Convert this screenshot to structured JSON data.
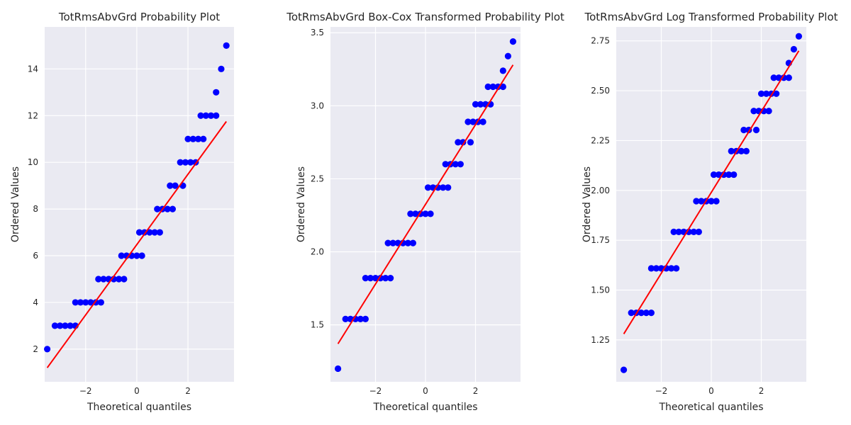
{
  "chart_data": [
    {
      "type": "scatter",
      "title": "TotRmsAbvGrd Probability Plot",
      "xlabel": "Theoretical quantiles",
      "ylabel": "Ordered Values",
      "xlim": [
        -3.6,
        3.8
      ],
      "ylim": [
        0.6,
        15.8
      ],
      "xticks": [
        -2,
        0,
        2
      ],
      "xtick_labels": [
        "−2",
        "0",
        "2"
      ],
      "yticks": [
        2,
        4,
        6,
        8,
        10,
        12,
        14
      ],
      "ytick_labels": [
        "2",
        "4",
        "6",
        "8",
        "10",
        "12",
        "14"
      ],
      "grid": true,
      "points": [
        {
          "x": -3.5,
          "y": 2
        },
        {
          "x": -3.2,
          "y": 3
        },
        {
          "x": -3.0,
          "y": 3
        },
        {
          "x": -2.8,
          "y": 3
        },
        {
          "x": -2.6,
          "y": 3
        },
        {
          "x": -2.4,
          "y": 3
        },
        {
          "x": -2.4,
          "y": 4
        },
        {
          "x": -2.2,
          "y": 4
        },
        {
          "x": -2.0,
          "y": 4
        },
        {
          "x": -1.8,
          "y": 4
        },
        {
          "x": -1.6,
          "y": 4
        },
        {
          "x": -1.4,
          "y": 4
        },
        {
          "x": -1.5,
          "y": 5
        },
        {
          "x": -1.3,
          "y": 5
        },
        {
          "x": -1.1,
          "y": 5
        },
        {
          "x": -0.9,
          "y": 5
        },
        {
          "x": -0.7,
          "y": 5
        },
        {
          "x": -0.5,
          "y": 5
        },
        {
          "x": -0.6,
          "y": 6
        },
        {
          "x": -0.4,
          "y": 6
        },
        {
          "x": -0.2,
          "y": 6
        },
        {
          "x": 0.0,
          "y": 6
        },
        {
          "x": 0.2,
          "y": 6
        },
        {
          "x": 0.1,
          "y": 7
        },
        {
          "x": 0.3,
          "y": 7
        },
        {
          "x": 0.5,
          "y": 7
        },
        {
          "x": 0.7,
          "y": 7
        },
        {
          "x": 0.9,
          "y": 7
        },
        {
          "x": 0.8,
          "y": 8
        },
        {
          "x": 1.0,
          "y": 8
        },
        {
          "x": 1.2,
          "y": 8
        },
        {
          "x": 1.4,
          "y": 8
        },
        {
          "x": 1.3,
          "y": 9
        },
        {
          "x": 1.5,
          "y": 9
        },
        {
          "x": 1.8,
          "y": 9
        },
        {
          "x": 1.7,
          "y": 10
        },
        {
          "x": 1.9,
          "y": 10
        },
        {
          "x": 2.1,
          "y": 10
        },
        {
          "x": 2.3,
          "y": 10
        },
        {
          "x": 2.0,
          "y": 11
        },
        {
          "x": 2.2,
          "y": 11
        },
        {
          "x": 2.4,
          "y": 11
        },
        {
          "x": 2.6,
          "y": 11
        },
        {
          "x": 2.5,
          "y": 12
        },
        {
          "x": 2.7,
          "y": 12
        },
        {
          "x": 2.9,
          "y": 12
        },
        {
          "x": 3.1,
          "y": 12
        },
        {
          "x": 3.1,
          "y": 13
        },
        {
          "x": 3.3,
          "y": 14
        },
        {
          "x": 3.5,
          "y": 15
        }
      ],
      "fit_line": {
        "x": [
          -3.5,
          3.5
        ],
        "y": [
          1.2,
          11.75
        ]
      },
      "colors": {
        "points": "#0000ff",
        "line": "#ff0000",
        "background": "#eaeaf2",
        "grid": "#ffffff"
      }
    },
    {
      "type": "scatter",
      "title": "TotRmsAbvGrd Box-Cox Transformed Probability Plot",
      "xlabel": "Theoretical quantiles",
      "ylabel": "Ordered Values",
      "xlim": [
        -3.8,
        3.8
      ],
      "ylim": [
        1.11,
        3.54
      ],
      "xticks": [
        -2,
        0,
        2
      ],
      "xtick_labels": [
        "−2",
        "0",
        "2"
      ],
      "yticks": [
        1.5,
        2.0,
        2.5,
        3.0,
        3.5
      ],
      "ytick_labels": [
        "1.5",
        "2.0",
        "2.5",
        "3.0",
        "3.5"
      ],
      "grid": true,
      "points": [
        {
          "x": -3.5,
          "y": 1.2
        },
        {
          "x": -3.2,
          "y": 1.54
        },
        {
          "x": -3.0,
          "y": 1.54
        },
        {
          "x": -2.8,
          "y": 1.54
        },
        {
          "x": -2.6,
          "y": 1.54
        },
        {
          "x": -2.4,
          "y": 1.54
        },
        {
          "x": -2.4,
          "y": 1.82
        },
        {
          "x": -2.2,
          "y": 1.82
        },
        {
          "x": -2.0,
          "y": 1.82
        },
        {
          "x": -1.8,
          "y": 1.82
        },
        {
          "x": -1.6,
          "y": 1.82
        },
        {
          "x": -1.4,
          "y": 1.82
        },
        {
          "x": -1.5,
          "y": 2.06
        },
        {
          "x": -1.3,
          "y": 2.06
        },
        {
          "x": -1.1,
          "y": 2.06
        },
        {
          "x": -0.9,
          "y": 2.06
        },
        {
          "x": -0.7,
          "y": 2.06
        },
        {
          "x": -0.5,
          "y": 2.06
        },
        {
          "x": -0.6,
          "y": 2.26
        },
        {
          "x": -0.4,
          "y": 2.26
        },
        {
          "x": -0.2,
          "y": 2.26
        },
        {
          "x": 0.0,
          "y": 2.26
        },
        {
          "x": 0.2,
          "y": 2.26
        },
        {
          "x": 0.1,
          "y": 2.44
        },
        {
          "x": 0.3,
          "y": 2.44
        },
        {
          "x": 0.5,
          "y": 2.44
        },
        {
          "x": 0.7,
          "y": 2.44
        },
        {
          "x": 0.9,
          "y": 2.44
        },
        {
          "x": 0.8,
          "y": 2.6
        },
        {
          "x": 1.0,
          "y": 2.6
        },
        {
          "x": 1.2,
          "y": 2.6
        },
        {
          "x": 1.4,
          "y": 2.6
        },
        {
          "x": 1.3,
          "y": 2.75
        },
        {
          "x": 1.5,
          "y": 2.75
        },
        {
          "x": 1.8,
          "y": 2.75
        },
        {
          "x": 1.7,
          "y": 2.89
        },
        {
          "x": 1.9,
          "y": 2.89
        },
        {
          "x": 2.1,
          "y": 2.89
        },
        {
          "x": 2.3,
          "y": 2.89
        },
        {
          "x": 2.0,
          "y": 3.01
        },
        {
          "x": 2.2,
          "y": 3.01
        },
        {
          "x": 2.4,
          "y": 3.01
        },
        {
          "x": 2.6,
          "y": 3.01
        },
        {
          "x": 2.5,
          "y": 3.13
        },
        {
          "x": 2.7,
          "y": 3.13
        },
        {
          "x": 2.9,
          "y": 3.13
        },
        {
          "x": 3.1,
          "y": 3.13
        },
        {
          "x": 3.1,
          "y": 3.24
        },
        {
          "x": 3.3,
          "y": 3.34
        },
        {
          "x": 3.5,
          "y": 3.44
        }
      ],
      "fit_line": {
        "x": [
          -3.5,
          3.5
        ],
        "y": [
          1.37,
          3.28
        ]
      },
      "colors": {
        "points": "#0000ff",
        "line": "#ff0000",
        "background": "#eaeaf2",
        "grid": "#ffffff"
      }
    },
    {
      "type": "scatter",
      "title": "TotRmsAbvGrd Log Transformed Probability Plot",
      "xlabel": "Theoretical quantiles",
      "ylabel": "Ordered Values",
      "xlim": [
        -3.8,
        3.8
      ],
      "ylim": [
        1.04,
        2.82
      ],
      "xticks": [
        -2,
        0,
        2
      ],
      "xtick_labels": [
        "−2",
        "0",
        "2"
      ],
      "yticks": [
        1.25,
        1.5,
        1.75,
        2.0,
        2.25,
        2.5,
        2.75
      ],
      "ytick_labels": [
        "1.25",
        "1.50",
        "1.75",
        "2.00",
        "2.25",
        "2.50",
        "2.75"
      ],
      "grid": true,
      "points": [
        {
          "x": -3.5,
          "y": 1.1
        },
        {
          "x": -3.2,
          "y": 1.386
        },
        {
          "x": -3.0,
          "y": 1.386
        },
        {
          "x": -2.8,
          "y": 1.386
        },
        {
          "x": -2.6,
          "y": 1.386
        },
        {
          "x": -2.4,
          "y": 1.386
        },
        {
          "x": -2.4,
          "y": 1.609
        },
        {
          "x": -2.2,
          "y": 1.609
        },
        {
          "x": -2.0,
          "y": 1.609
        },
        {
          "x": -1.8,
          "y": 1.609
        },
        {
          "x": -1.6,
          "y": 1.609
        },
        {
          "x": -1.4,
          "y": 1.609
        },
        {
          "x": -1.5,
          "y": 1.792
        },
        {
          "x": -1.3,
          "y": 1.792
        },
        {
          "x": -1.1,
          "y": 1.792
        },
        {
          "x": -0.9,
          "y": 1.792
        },
        {
          "x": -0.7,
          "y": 1.792
        },
        {
          "x": -0.5,
          "y": 1.792
        },
        {
          "x": -0.6,
          "y": 1.946
        },
        {
          "x": -0.4,
          "y": 1.946
        },
        {
          "x": -0.2,
          "y": 1.946
        },
        {
          "x": 0.0,
          "y": 1.946
        },
        {
          "x": 0.2,
          "y": 1.946
        },
        {
          "x": 0.1,
          "y": 2.079
        },
        {
          "x": 0.3,
          "y": 2.079
        },
        {
          "x": 0.5,
          "y": 2.079
        },
        {
          "x": 0.7,
          "y": 2.079
        },
        {
          "x": 0.9,
          "y": 2.079
        },
        {
          "x": 0.8,
          "y": 2.197
        },
        {
          "x": 1.0,
          "y": 2.197
        },
        {
          "x": 1.2,
          "y": 2.197
        },
        {
          "x": 1.4,
          "y": 2.197
        },
        {
          "x": 1.3,
          "y": 2.303
        },
        {
          "x": 1.5,
          "y": 2.303
        },
        {
          "x": 1.8,
          "y": 2.303
        },
        {
          "x": 1.7,
          "y": 2.398
        },
        {
          "x": 1.9,
          "y": 2.398
        },
        {
          "x": 2.1,
          "y": 2.398
        },
        {
          "x": 2.3,
          "y": 2.398
        },
        {
          "x": 2.0,
          "y": 2.485
        },
        {
          "x": 2.2,
          "y": 2.485
        },
        {
          "x": 2.4,
          "y": 2.485
        },
        {
          "x": 2.6,
          "y": 2.485
        },
        {
          "x": 2.5,
          "y": 2.565
        },
        {
          "x": 2.7,
          "y": 2.565
        },
        {
          "x": 2.9,
          "y": 2.565
        },
        {
          "x": 3.1,
          "y": 2.565
        },
        {
          "x": 3.1,
          "y": 2.639
        },
        {
          "x": 3.3,
          "y": 2.708
        },
        {
          "x": 3.5,
          "y": 2.773
        }
      ],
      "fit_line": {
        "x": [
          -3.5,
          3.5
        ],
        "y": [
          1.28,
          2.7
        ]
      },
      "colors": {
        "points": "#0000ff",
        "line": "#ff0000",
        "background": "#eaeaf2",
        "grid": "#ffffff"
      }
    }
  ]
}
